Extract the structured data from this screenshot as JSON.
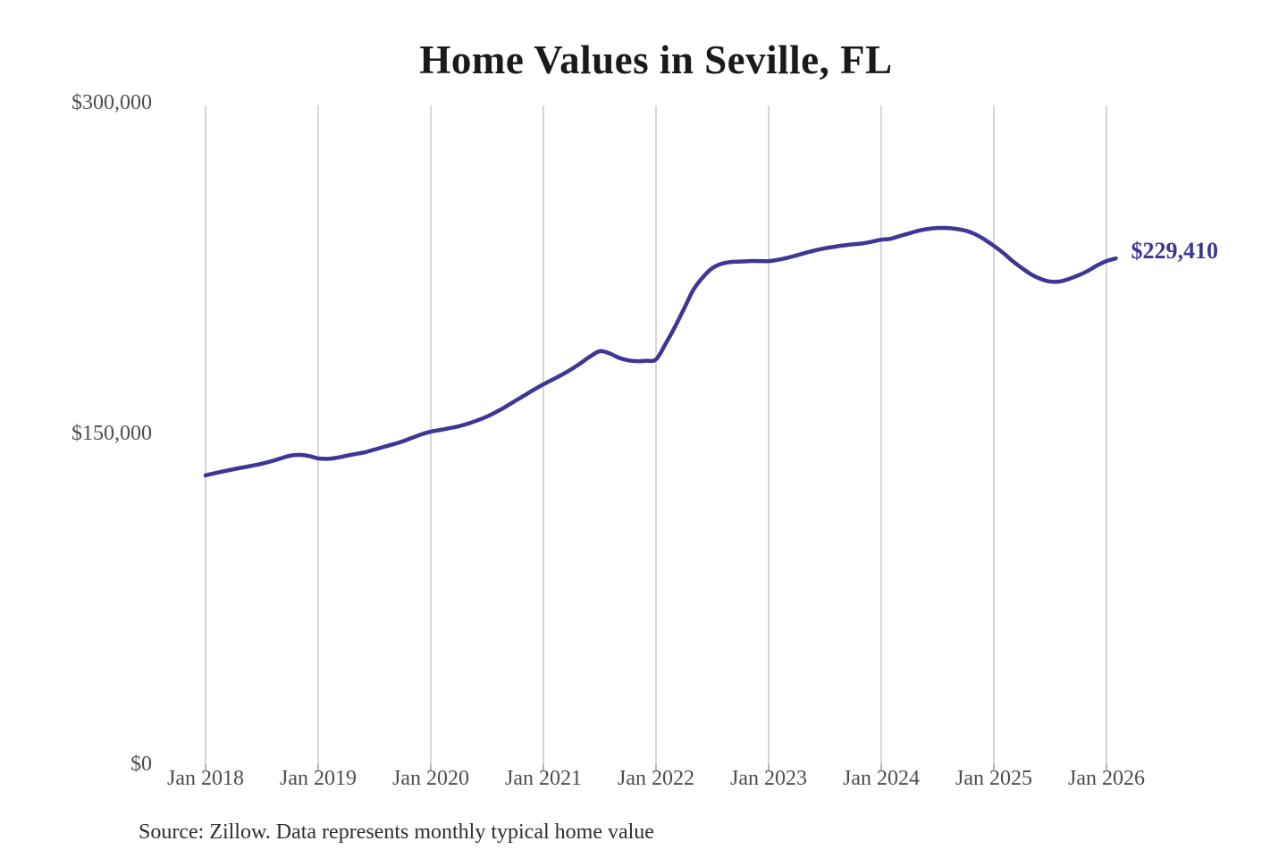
{
  "page": {
    "background": "#ffffff"
  },
  "chart_data": {
    "type": "line",
    "title": "Home Values in Seville, FL",
    "source_note": "Source: Zillow. Data represents monthly typical home value",
    "end_label": "$229,410",
    "x_ticks": [
      "Jan 2018",
      "Jan 2019",
      "Jan 2020",
      "Jan 2021",
      "Jan 2022",
      "Jan 2023",
      "Jan 2024",
      "Jan 2025",
      "Jan 2026"
    ],
    "y_ticks": [
      {
        "label": "$0",
        "value": 0
      },
      {
        "label": "$150,000",
        "value": 150000
      },
      {
        "label": "$300,000",
        "value": 300000
      }
    ],
    "ylim": [
      0,
      300000
    ],
    "grid": "vertical-only",
    "legend": "none",
    "series": [
      {
        "name": "Monthly typical home value",
        "start_month": "2018-01",
        "interval": "monthly",
        "color": "#3d3695",
        "values": [
          131000,
          132000,
          132900,
          133800,
          134600,
          135400,
          136300,
          137400,
          138700,
          139900,
          140300,
          139800,
          138700,
          138500,
          139000,
          139900,
          140700,
          141500,
          142700,
          143900,
          145100,
          146400,
          148000,
          149600,
          150800,
          151600,
          152400,
          153300,
          154500,
          156000,
          157700,
          159800,
          162200,
          164800,
          167300,
          169900,
          172300,
          174500,
          176700,
          179200,
          182000,
          185000,
          187300,
          186400,
          184400,
          183200,
          182800,
          183000,
          183600,
          190500,
          198200,
          206700,
          215300,
          220900,
          225000,
          227000,
          227800,
          228000,
          228200,
          228200,
          228200,
          228800,
          229700,
          230800,
          232000,
          233100,
          234000,
          234700,
          235300,
          235800,
          236200,
          237000,
          237900,
          238300,
          239600,
          240800,
          242000,
          242800,
          243200,
          243200,
          242800,
          242000,
          240400,
          238000,
          235100,
          231900,
          228200,
          225000,
          222100,
          220100,
          218900,
          218900,
          220100,
          221700,
          223700,
          226200,
          228200,
          229410
        ]
      }
    ],
    "colors": {
      "line": "#3d3695",
      "grid_line": "#c8c8c8",
      "tick_mark": "#9a9a9a",
      "axis_text": "#4d4d4d",
      "title_text": "#1a1a1a",
      "source_text": "#2e2e2e"
    }
  }
}
